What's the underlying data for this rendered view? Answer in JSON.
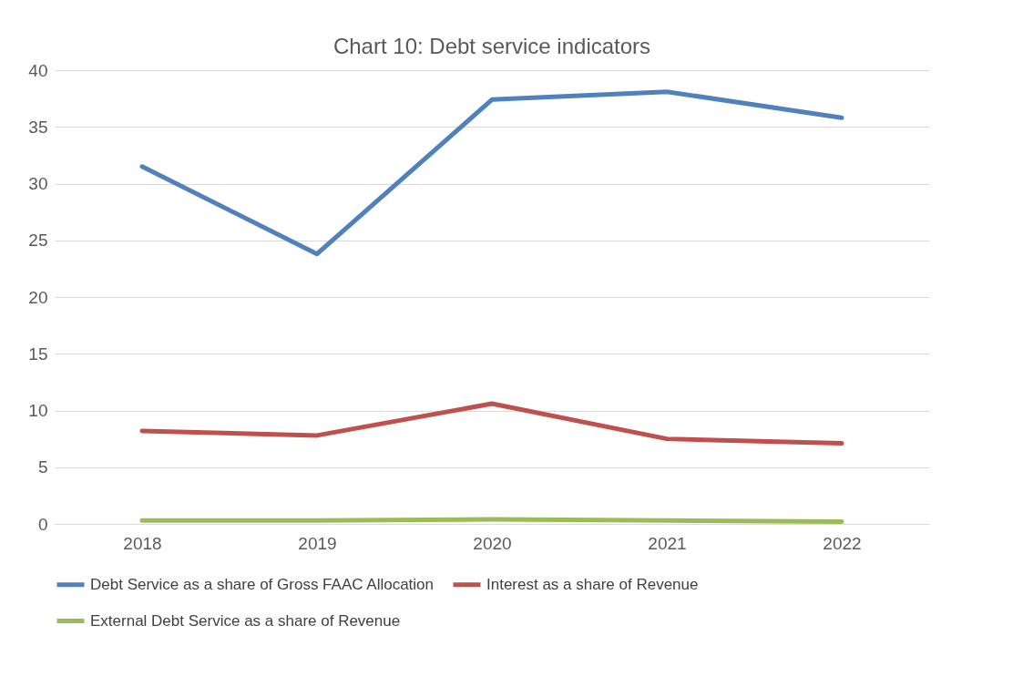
{
  "chart_data": {
    "type": "line",
    "title": "Chart 10: Debt service indicators",
    "categories": [
      "2018",
      "2019",
      "2020",
      "2021",
      "2022"
    ],
    "series": [
      {
        "name": "Debt Service as a share of Gross FAAC Allocation",
        "color": "#4f81bd",
        "values": [
          31.5,
          23.8,
          37.4,
          38.1,
          35.8
        ]
      },
      {
        "name": "Interest as a share of Revenue",
        "color": "#c0504d",
        "values": [
          8.2,
          7.8,
          10.6,
          7.5,
          7.1
        ]
      },
      {
        "name": "External Debt Service as a share of Revenue",
        "color": "#9bbb59",
        "values": [
          0.3,
          0.3,
          0.4,
          0.3,
          0.2
        ]
      }
    ],
    "ylim": [
      0,
      40
    ],
    "yticks": [
      0,
      5,
      10,
      15,
      20,
      25,
      30,
      35,
      40
    ],
    "grid": "y",
    "legend": "bottom",
    "marker": "none",
    "line_style": "solid"
  }
}
